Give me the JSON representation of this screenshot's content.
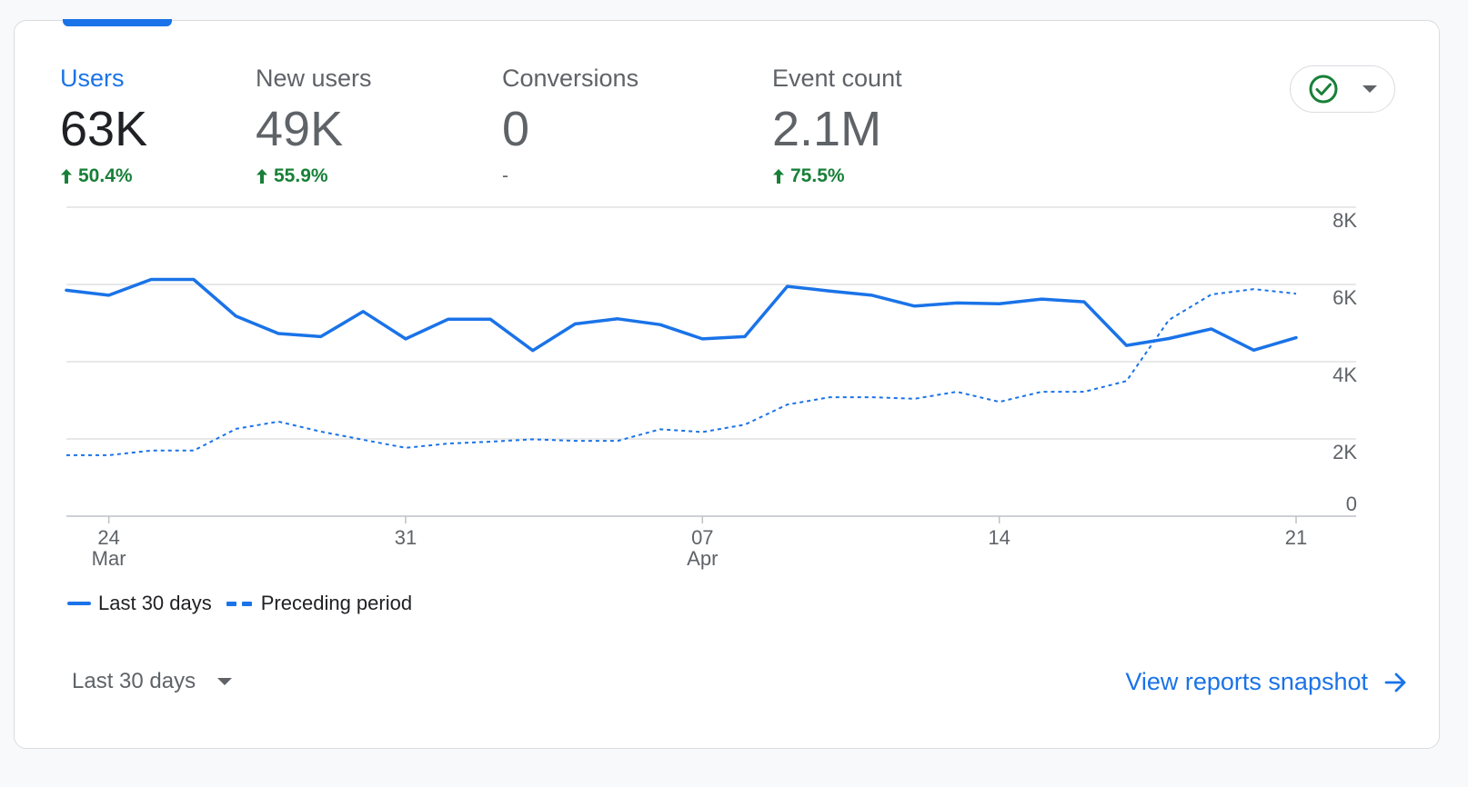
{
  "metrics": [
    {
      "label": "Users",
      "value": "63K",
      "change": "50.4%",
      "trend": "up",
      "active": true
    },
    {
      "label": "New users",
      "value": "49K",
      "change": "55.9%",
      "trend": "up",
      "active": false
    },
    {
      "label": "Conversions",
      "value": "0",
      "change": "-",
      "trend": "none",
      "active": false
    },
    {
      "label": "Event count",
      "value": "2.1M",
      "change": "75.5%",
      "trend": "up",
      "active": false
    }
  ],
  "status_dropdown": {
    "icon": "check-circle-icon",
    "dropdown_icon": "caret-down-icon"
  },
  "legend": {
    "current": "Last 30 days",
    "previous": "Preceding period"
  },
  "date_range": {
    "selected": "Last 30 days"
  },
  "view_link": {
    "label": "View reports snapshot",
    "icon": "arrow-right-icon"
  },
  "colors": {
    "accent": "#1a73e8",
    "positive": "#188038",
    "muted": "#5f6368",
    "check": "#188038"
  },
  "chart_data": {
    "type": "line",
    "x": [
      "Mar 23",
      "Mar 24",
      "Mar 25",
      "Mar 26",
      "Mar 27",
      "Mar 28",
      "Mar 29",
      "Mar 30",
      "Mar 31",
      "Apr 1",
      "Apr 2",
      "Apr 3",
      "Apr 4",
      "Apr 5",
      "Apr 6",
      "Apr 7",
      "Apr 8",
      "Apr 9",
      "Apr 10",
      "Apr 11",
      "Apr 12",
      "Apr 13",
      "Apr 14",
      "Apr 15",
      "Apr 16",
      "Apr 17",
      "Apr 18",
      "Apr 19",
      "Apr 20",
      "Apr 21"
    ],
    "x_ticks": [
      {
        "day": "24",
        "month": "Mar",
        "index": 1
      },
      {
        "day": "31",
        "month": "",
        "index": 8
      },
      {
        "day": "07",
        "month": "Apr",
        "index": 15
      },
      {
        "day": "14",
        "month": "",
        "index": 22
      },
      {
        "day": "21",
        "month": "",
        "index": 29
      }
    ],
    "y_ticks": [
      "0",
      "2K",
      "4K",
      "6K",
      "8K"
    ],
    "y_tick_values": [
      0,
      2000,
      4000,
      6000,
      8000
    ],
    "ylim": [
      0,
      8000
    ],
    "grid": true,
    "legend_position": "bottom-left",
    "series": [
      {
        "name": "Last 30 days",
        "style": "solid",
        "values": [
          5850,
          5720,
          6130,
          6130,
          5180,
          4730,
          4650,
          5300,
          4590,
          5100,
          5100,
          4290,
          4980,
          5110,
          4960,
          4590,
          4650,
          5950,
          5830,
          5720,
          5440,
          5520,
          5500,
          5620,
          5550,
          4420,
          4600,
          4850,
          4300,
          4620
        ]
      },
      {
        "name": "Preceding period",
        "style": "dashed",
        "values": [
          1580,
          1580,
          1700,
          1700,
          2260,
          2450,
          2190,
          1980,
          1770,
          1880,
          1930,
          1990,
          1950,
          1950,
          2250,
          2180,
          2370,
          2890,
          3080,
          3080,
          3040,
          3220,
          2960,
          3220,
          3220,
          3500,
          5080,
          5740,
          5880,
          5760
        ]
      }
    ]
  }
}
